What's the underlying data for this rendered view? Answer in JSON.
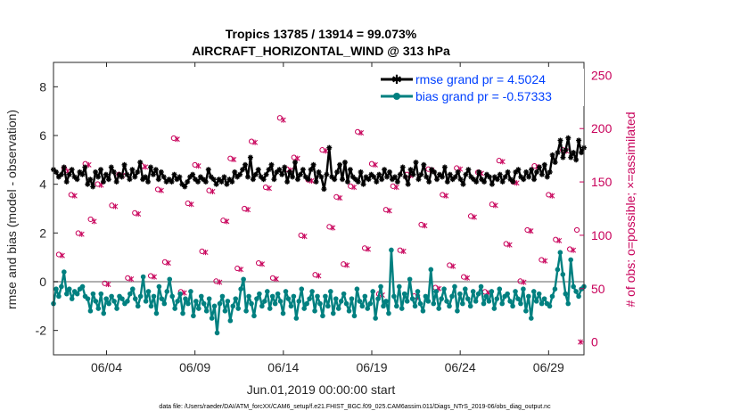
{
  "chart_data": {
    "type": "line",
    "title_line1": "Tropics 13785 / 13914 = 99.073%",
    "title_line2": "AIRCRAFT_HORIZONTAL_WIND @ 313 hPa",
    "xlabel": "Jun.01,2019 00:00:00 start",
    "ylabel_left": "rmse and bias (model - observation)",
    "ylabel_right": "# of obs: o=possible; ×=assimilated",
    "footer": "data file: /Users/raeder/DAI/ATM_forcXX/CAM6_setup/f.e21.FHIST_BGC.f09_025.CAM6assim.011/Diags_NTrS_2019-06/obs_diag_output.nc",
    "x_ticks": [
      {
        "day": 4,
        "label": "06/04"
      },
      {
        "day": 9,
        "label": "06/09"
      },
      {
        "day": 14,
        "label": "06/14"
      },
      {
        "day": 19,
        "label": "06/19"
      },
      {
        "day": 24,
        "label": "06/24"
      },
      {
        "day": 29,
        "label": "06/29"
      }
    ],
    "xlim": [
      1.0,
      31.0
    ],
    "ylim_left": [
      -3,
      9
    ],
    "ylim_right": [
      -12,
      262
    ],
    "left_ticks": [
      -2,
      0,
      2,
      4,
      6,
      8
    ],
    "right_ticks": [
      0,
      50,
      100,
      150,
      200,
      250
    ],
    "legend_rmse": "rmse grand pr = 4.5024",
    "legend_bias": "bias grand pr = -0.57333",
    "colors": {
      "rmse": "#000000",
      "bias": "#008080",
      "obs": "#c8005a",
      "zero": "#b0b0b0",
      "legend": "#0040ff"
    },
    "series": [
      {
        "name": "rmse",
        "values": [
          4.6,
          4.5,
          4.3,
          4.4,
          4.7,
          4.1,
          4.4,
          4.6,
          4.3,
          4.2,
          4.5,
          4.4,
          4.7,
          4.0,
          4.2,
          3.9,
          4.5,
          4.3,
          4.6,
          4.1,
          4.4,
          4.2,
          4.7,
          4.5,
          4.1,
          4.4,
          4.3,
          4.8,
          4.4,
          4.2,
          4.6,
          4.3,
          4.5,
          4.9,
          4.2,
          4.3,
          4.1,
          4.7,
          4.4,
          4.6,
          4.2,
          4.5,
          4.3,
          4.1,
          4.2,
          4.1,
          4.4,
          4.2,
          4.3,
          4.0,
          3.9,
          4.1,
          4.3,
          4.4,
          4.2,
          4.1,
          4.3,
          4.2,
          4.1,
          4.6,
          4.3,
          4.2,
          4.0,
          4.2,
          4.1,
          4.3,
          4.0,
          4.2,
          4.1,
          4.5,
          4.3,
          4.4,
          4.6,
          4.8,
          4.3,
          5.1,
          4.2,
          4.4,
          4.6,
          4.3,
          4.2,
          4.4,
          4.6,
          4.8,
          4.2,
          4.5,
          4.6,
          4.4,
          4.7,
          4.1,
          4.5,
          4.3,
          4.9,
          4.2,
          4.4,
          4.6,
          4.3,
          4.2,
          4.6,
          4.8,
          4.1,
          4.5,
          4.3,
          3.8,
          4.4,
          5.5,
          4.3,
          4.2,
          4.5,
          4.8,
          4.2,
          4.9,
          4.1,
          4.6,
          4.3,
          4.2,
          4.1,
          4.5,
          4.0,
          4.3,
          4.2,
          4.4,
          4.3,
          4.1,
          4.4,
          4.2,
          4.6,
          4.3,
          4.5,
          4.2,
          4.3,
          4.1,
          4.4,
          4.7,
          4.3,
          4.0,
          4.6,
          4.4,
          4.9,
          4.2,
          4.4,
          4.8,
          4.3,
          4.1,
          4.6,
          4.5,
          4.2,
          4.4,
          4.3,
          4.7,
          4.1,
          4.4,
          4.2,
          4.3,
          4.5,
          4.2,
          4.0,
          4.4,
          4.6,
          4.3,
          4.2,
          4.1,
          4.5,
          4.2,
          4.1,
          4.4,
          4.3,
          4.0,
          4.3,
          4.2,
          4.4,
          4.1,
          4.3,
          4.5,
          4.2,
          4.1,
          4.5,
          4.6,
          4.3,
          4.2,
          4.5,
          4.3,
          4.6,
          4.2,
          4.5,
          4.7,
          4.4,
          4.8,
          4.3,
          4.5,
          5.2,
          4.9,
          5.3,
          5.8,
          5.1,
          5.4,
          5.9,
          5.1,
          5.3,
          5.0,
          5.8,
          5.3,
          5.5
        ]
      },
      {
        "name": "bias",
        "values": [
          -0.9,
          -0.3,
          -0.6,
          -0.2,
          0.4,
          -0.5,
          -0.3,
          -0.7,
          -0.4,
          -0.5,
          -0.3,
          -0.2,
          -0.6,
          -0.7,
          -1.2,
          -0.5,
          -0.8,
          -1.1,
          -0.5,
          -1.3,
          -0.7,
          -0.9,
          -0.6,
          -0.8,
          -1.1,
          -0.6,
          -0.7,
          -0.9,
          -0.8,
          -0.5,
          -0.3,
          -0.7,
          -1.0,
          -0.6,
          0.2,
          -0.8,
          -0.4,
          -1.0,
          -0.6,
          -1.3,
          -0.2,
          -0.7,
          -0.9,
          -0.4,
          0.1,
          -0.6,
          -1.1,
          -0.8,
          -0.5,
          -1.3,
          -0.7,
          -0.9,
          -0.4,
          -1.4,
          -0.8,
          -1.1,
          -0.6,
          -0.9,
          -1.2,
          -0.7,
          -1.5,
          -1.0,
          -2.1,
          -0.9,
          -0.6,
          -1.2,
          -0.8,
          -1.6,
          -1.0,
          -0.7,
          -1.1,
          -0.3,
          0.1,
          -1.2,
          -0.6,
          -0.9,
          -1.4,
          -0.7,
          -0.5,
          -1.0,
          -0.8,
          -0.4,
          -1.1,
          -0.6,
          -0.9,
          -0.5,
          -0.8,
          -1.3,
          -0.4,
          -0.7,
          -1.0,
          -0.6,
          -1.5,
          -0.8,
          -0.3,
          -1.1,
          -0.9,
          -0.7,
          -0.4,
          -1.2,
          -0.6,
          -0.9,
          -1.4,
          -0.6,
          -1.0,
          -0.4,
          -1.3,
          -0.7,
          -1.1,
          -0.8,
          -0.5,
          -0.9,
          -1.2,
          -0.7,
          -1.4,
          -0.3,
          -0.8,
          -1.0,
          -0.6,
          -1.1,
          -0.9,
          -0.4,
          -1.5,
          -0.7,
          -0.2,
          -1.0,
          -0.8,
          -1.3,
          1.3,
          -0.6,
          -1.0,
          -0.2,
          -1.1,
          -0.5,
          -0.8,
          0.1,
          -0.7,
          -1.0,
          -0.4,
          -0.9,
          -1.2,
          -0.6,
          -0.8,
          0.5,
          -0.9,
          -0.4,
          -1.1,
          -0.7,
          -0.3,
          -0.8,
          -1.0,
          -0.6,
          -0.2,
          -1.2,
          -0.5,
          -0.9,
          -0.3,
          -0.7,
          -1.0,
          -0.4,
          -0.8,
          -0.5,
          -0.2,
          -0.9,
          -0.6,
          -0.8,
          -0.4,
          -1.1,
          -0.7,
          -0.3,
          -0.9,
          -0.6,
          -0.5,
          -0.8,
          -1.0,
          -0.4,
          -0.7,
          -0.9,
          -0.3,
          -1.2,
          -0.6,
          -1.5,
          -0.4,
          -0.8,
          -0.5,
          -0.9,
          -0.7,
          -0.9,
          -1.0,
          -0.6,
          -0.3,
          0.5,
          1.2,
          0.3,
          -0.5,
          -0.9,
          0.9,
          -0.2,
          -0.4,
          -0.6,
          -0.3,
          -0.2
        ]
      },
      {
        "name": "obs_possible",
        "days": [
          1.3,
          1.6,
          2.0,
          2.4,
          2.8,
          3.1,
          3.5,
          3.9,
          4.3,
          4.7,
          5.2,
          5.6,
          6.0,
          6.5,
          6.9,
          7.3,
          7.8,
          8.2,
          8.6,
          9.0,
          9.4,
          9.8,
          10.2,
          10.6,
          11.0,
          11.4,
          11.8,
          12.2,
          12.6,
          13.0,
          13.4,
          13.8,
          14.2,
          14.6,
          15.0,
          15.4,
          15.8,
          16.2,
          16.6,
          17.0,
          17.4,
          17.8,
          18.2,
          18.6,
          19.0,
          19.4,
          19.8,
          20.2,
          20.6,
          21.0,
          21.4,
          21.8,
          22.2,
          22.6,
          23.0,
          23.4,
          23.8,
          24.2,
          24.6,
          25.0,
          25.4,
          25.8,
          26.2,
          26.6,
          27.0,
          27.4,
          27.8,
          28.2,
          28.6,
          29.0,
          29.4,
          29.8,
          30.2,
          30.6
        ],
        "values": [
          82,
          163,
          138,
          102,
          167,
          115,
          148,
          55,
          128,
          157,
          60,
          121,
          165,
          62,
          143,
          75,
          191,
          47,
          130,
          166,
          85,
          142,
          57,
          114,
          172,
          69,
          125,
          188,
          74,
          145,
          60,
          210,
          162,
          173,
          100,
          152,
          63,
          180,
          108,
          136,
          73,
          146,
          197,
          88,
          167,
          45,
          124,
          146,
          86,
          157,
          43,
          110,
          162,
          51,
          138,
          72,
          163,
          61,
          118,
          159,
          47,
          129,
          170,
          92,
          150,
          57,
          105,
          165,
          77,
          138,
          96,
          180,
          87,
          105
        ]
      },
      {
        "name": "obs_assimilated",
        "days": [
          1.5,
          1.8,
          2.2,
          2.6,
          3.0,
          3.3,
          3.7,
          4.1,
          4.5,
          4.9,
          5.4,
          5.8,
          6.2,
          6.7,
          7.1,
          7.5,
          8.0,
          8.4,
          8.8,
          9.2,
          9.6,
          10.0,
          10.4,
          10.8,
          11.2,
          11.6,
          12.0,
          12.4,
          12.8,
          13.2,
          13.6,
          14.0,
          14.4,
          14.8,
          15.2,
          15.6,
          16.0,
          16.4,
          16.8,
          17.2,
          17.6,
          18.0,
          18.4,
          18.8,
          19.2,
          19.6,
          20.0,
          20.4,
          20.8,
          21.2,
          21.6,
          22.0,
          22.4,
          22.8,
          23.2,
          23.6,
          24.0,
          24.4,
          24.8,
          25.2,
          25.6,
          26.0,
          26.4,
          26.8,
          27.2,
          27.6,
          28.0,
          28.4,
          28.8,
          29.2,
          29.6,
          30.0,
          30.4,
          30.8
        ],
        "values": [
          81,
          160,
          137,
          101,
          166,
          113,
          147,
          54,
          127,
          156,
          59,
          120,
          164,
          61,
          142,
          74,
          190,
          46,
          129,
          165,
          84,
          141,
          56,
          113,
          171,
          68,
          124,
          187,
          73,
          144,
          59,
          208,
          161,
          172,
          99,
          151,
          62,
          179,
          107,
          135,
          72,
          145,
          196,
          87,
          166,
          44,
          123,
          145,
          85,
          156,
          42,
          109,
          161,
          50,
          137,
          71,
          162,
          60,
          117,
          158,
          46,
          128,
          169,
          91,
          149,
          56,
          104,
          164,
          76,
          137,
          95,
          179,
          86,
          0
        ]
      }
    ]
  }
}
